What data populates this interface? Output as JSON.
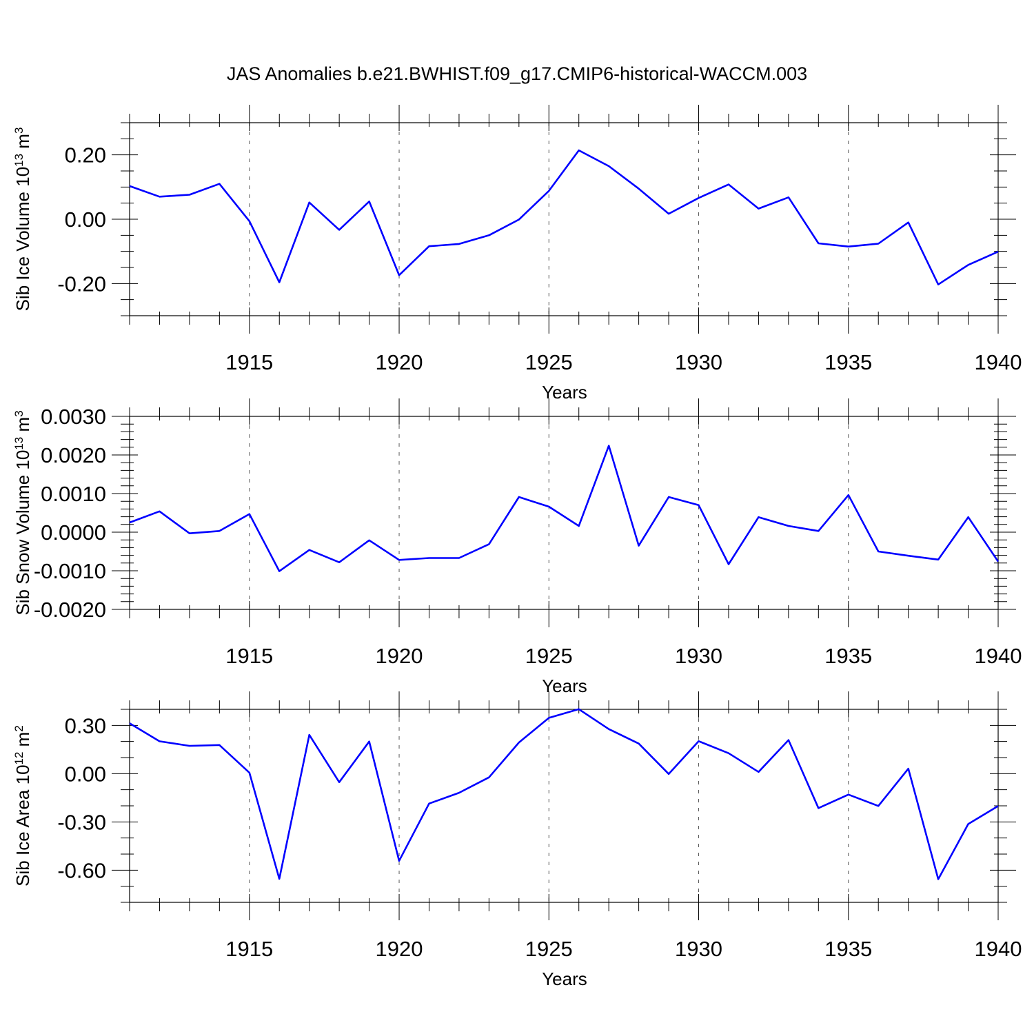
{
  "title": "JAS Anomalies b.e21.BWHIST.f09_g17.CMIP6-historical-WACCM.003",
  "colors": {
    "series": "#0000ff",
    "axes": "#000000"
  },
  "chart_data": [
    {
      "type": "line",
      "ylabel_main": "Sib Ice Volume 10",
      "ylabel_exp": "13",
      "ylabel_tail": " m",
      "ylabel_unit_exp": "3",
      "xlabel": "Years",
      "xlim": [
        1911,
        1940
      ],
      "ylim": [
        -0.3,
        0.3
      ],
      "x_ticks": [
        1915,
        1920,
        1925,
        1930,
        1935,
        1940
      ],
      "x_tick_labels": [
        "1915",
        "1920",
        "1925",
        "1930",
        "1935",
        "1940"
      ],
      "y_ticks": [
        0.2,
        0.0,
        -0.2
      ],
      "y_tick_labels": [
        "0.20",
        "0.00",
        "-0.20"
      ],
      "y_minor_step": 0.05,
      "grid": "vertical dashed at major x ticks",
      "x": [
        1911,
        1912,
        1913,
        1914,
        1915,
        1916,
        1917,
        1918,
        1919,
        1920,
        1921,
        1922,
        1923,
        1924,
        1925,
        1926,
        1927,
        1928,
        1929,
        1930,
        1931,
        1932,
        1933,
        1934,
        1935,
        1936,
        1937,
        1938,
        1939,
        1940
      ],
      "values": [
        0.103,
        0.07,
        0.076,
        0.11,
        -0.006,
        -0.196,
        0.052,
        -0.033,
        0.055,
        -0.174,
        -0.084,
        -0.077,
        -0.05,
        -0.001,
        0.088,
        0.214,
        0.165,
        0.095,
        0.017,
        0.066,
        0.108,
        0.033,
        0.068,
        -0.075,
        -0.085,
        -0.076,
        -0.01,
        -0.203,
        -0.142,
        -0.101
      ]
    },
    {
      "type": "line",
      "ylabel_main": "Sib Snow Volume 10",
      "ylabel_exp": "13",
      "ylabel_tail": " m",
      "ylabel_unit_exp": "3",
      "xlabel": "Years",
      "xlim": [
        1911,
        1940
      ],
      "ylim": [
        -0.002,
        0.003
      ],
      "x_ticks": [
        1915,
        1920,
        1925,
        1930,
        1935,
        1940
      ],
      "x_tick_labels": [
        "1915",
        "1920",
        "1925",
        "1930",
        "1935",
        "1940"
      ],
      "y_ticks": [
        0.003,
        0.002,
        0.001,
        0.0,
        -0.001,
        -0.002
      ],
      "y_tick_labels": [
        "0.0030",
        "0.0020",
        "0.0010",
        "0.0000",
        "-0.0010",
        "-0.0020"
      ],
      "y_minor_step": 0.0002,
      "grid": "vertical dashed at major x ticks",
      "x": [
        1911,
        1912,
        1913,
        1914,
        1915,
        1916,
        1917,
        1918,
        1919,
        1920,
        1921,
        1922,
        1923,
        1924,
        1925,
        1926,
        1927,
        1928,
        1929,
        1930,
        1931,
        1932,
        1933,
        1934,
        1935,
        1936,
        1937,
        1938,
        1939,
        1940
      ],
      "values": [
        0.00025,
        0.00054,
        -3e-05,
        3e-05,
        0.00047,
        -0.00101,
        -0.00046,
        -0.00078,
        -0.00021,
        -0.00072,
        -0.00067,
        -0.00067,
        -0.00031,
        0.00091,
        0.00066,
        0.00016,
        0.00224,
        -0.00035,
        0.00091,
        0.0007,
        -0.00083,
        0.00039,
        0.00016,
        3e-05,
        0.00096,
        -0.0005,
        -0.00061,
        -0.00071,
        0.00039,
        -0.00076
      ]
    },
    {
      "type": "line",
      "ylabel_main": "Sib Ice Area 10",
      "ylabel_exp": "12",
      "ylabel_tail": " m",
      "ylabel_unit_exp": "2",
      "xlabel": "Years",
      "xlim": [
        1911,
        1940
      ],
      "ylim": [
        -0.8,
        0.4
      ],
      "x_ticks": [
        1915,
        1920,
        1925,
        1930,
        1935,
        1940
      ],
      "x_tick_labels": [
        "1915",
        "1920",
        "1925",
        "1930",
        "1935",
        "1940"
      ],
      "y_ticks": [
        0.3,
        0.0,
        -0.3,
        -0.6
      ],
      "y_tick_labels": [
        "0.30",
        "0.00",
        "-0.30",
        "-0.60"
      ],
      "y_minor_step": 0.1,
      "grid": "vertical dashed at major x ticks",
      "x": [
        1911,
        1912,
        1913,
        1914,
        1915,
        1916,
        1917,
        1918,
        1919,
        1920,
        1921,
        1922,
        1923,
        1924,
        1925,
        1926,
        1927,
        1928,
        1929,
        1930,
        1931,
        1932,
        1933,
        1934,
        1935,
        1936,
        1937,
        1938,
        1939,
        1940
      ],
      "values": [
        0.313,
        0.201,
        0.173,
        0.178,
        0.006,
        -0.654,
        0.241,
        -0.053,
        0.2,
        -0.542,
        -0.186,
        -0.119,
        -0.023,
        0.194,
        0.347,
        0.401,
        0.277,
        0.187,
        -0.002,
        0.202,
        0.127,
        0.011,
        0.209,
        -0.214,
        -0.13,
        -0.201,
        0.031,
        -0.656,
        -0.313,
        -0.201
      ]
    }
  ]
}
